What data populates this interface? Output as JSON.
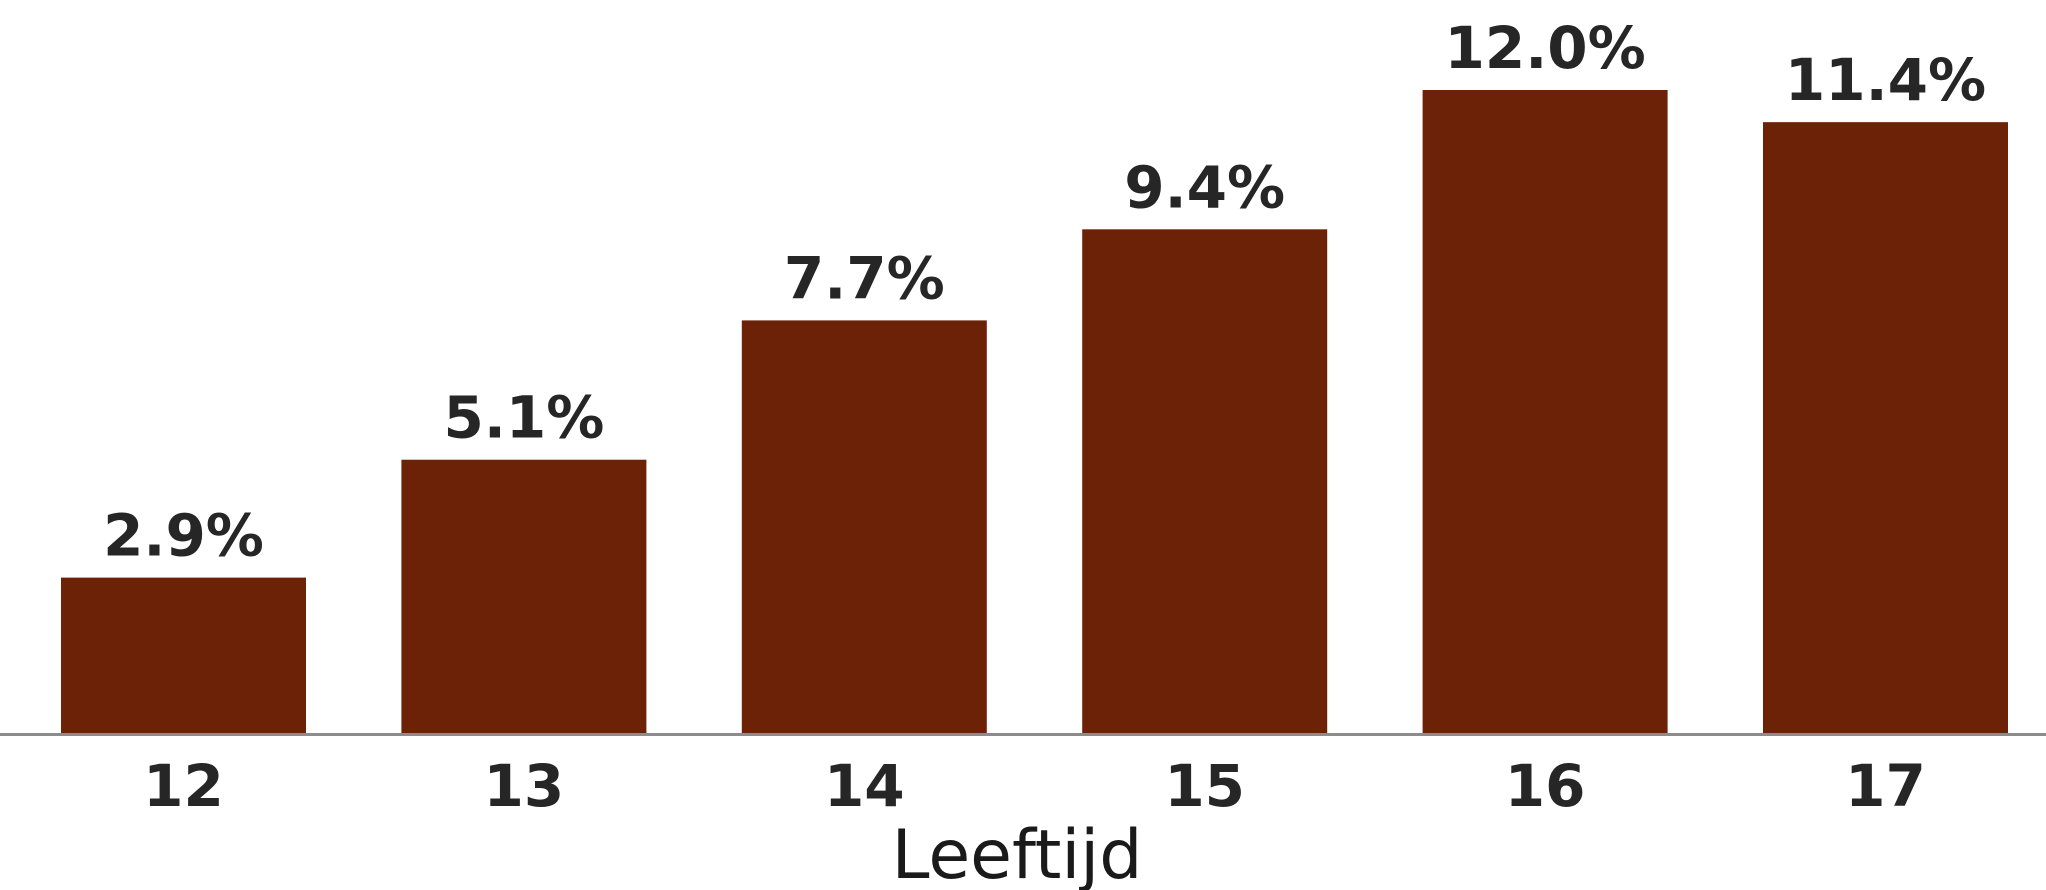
{
  "chart_data": {
    "type": "bar",
    "title": "",
    "xlabel": "Leeftijd",
    "ylabel": "",
    "categories": [
      "12",
      "13",
      "14",
      "15",
      "16",
      "17"
    ],
    "values": [
      2.9,
      5.1,
      7.7,
      9.4,
      12.0,
      11.4
    ],
    "value_labels": [
      "2.9%",
      "5.1%",
      "7.7%",
      "9.4%",
      "12.0%",
      "11.4%"
    ],
    "ylim": [
      0,
      12.0
    ],
    "grid": false,
    "legend": "none",
    "bar_color": "#6b2206",
    "axis_color": "#8c8c8c"
  }
}
